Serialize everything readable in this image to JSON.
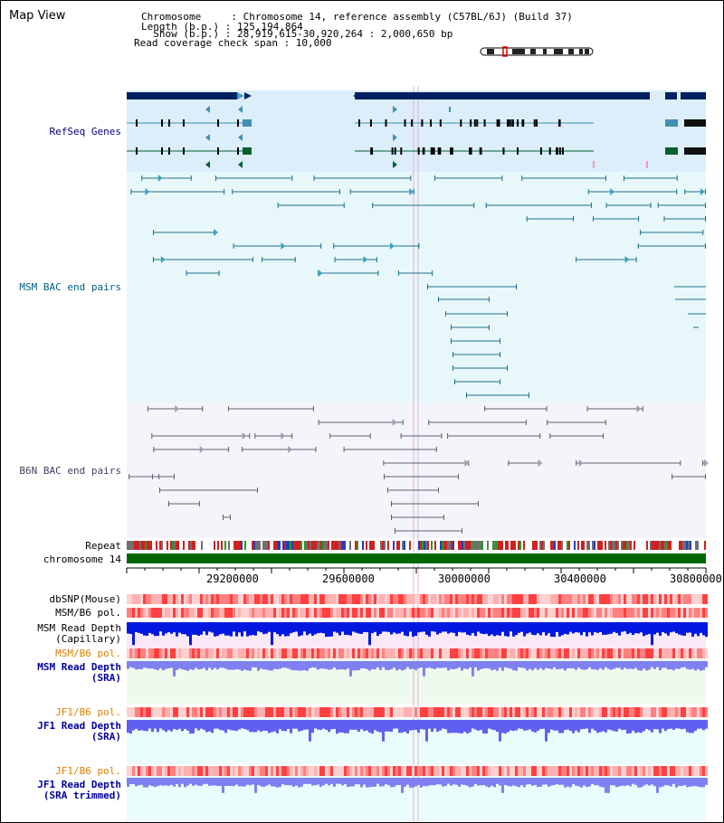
{
  "header": {
    "title": "Map View",
    "info_lines": [
      "Chromosome     : Chromosome 14, reference assembly (C57BL/6J) (Build 37)",
      "Length (b.p.) : 125,194,864",
      "  Show (b.p.) : 28,919,615-30,920,264 : 2,000,650 bp",
      "Read coverage check span : 10,000"
    ]
  },
  "tracks": {
    "refseq": "RefSeq Genes",
    "msm_bac": "MSM BAC end pairs",
    "b6n_bac": "B6N BAC end pairs",
    "repeat": "Repeat",
    "chromosome": "chromosome 14",
    "dbsnp": "dbSNP(Mouse)",
    "msm_pol1": "MSM/B6 pol.",
    "msm_depth_cap_1": "MSM Read Depth",
    "msm_depth_cap_2": "(Capillary)",
    "msm_pol2": "MSM/B6 pol.",
    "msm_depth_sra_1": "MSM Read Depth",
    "msm_depth_sra_2": "(SRA)",
    "jf1_pol1": "JF1/B6 pol.",
    "jf1_depth_sra_1": "JF1 Read Depth",
    "jf1_depth_sra_2": "(SRA)",
    "jf1_pol2": "JF1/B6 pol.",
    "jf1_depth_trim_1": "JF1 Read Depth",
    "jf1_depth_trim_2": "(SRA trimmed)"
  },
  "axis": {
    "ticks": [
      "29200000",
      "29600000",
      "30000000",
      "30400000",
      "30800000"
    ]
  },
  "colors": {
    "refseq_label": "#000080",
    "msm_label": "#006080",
    "b6n_label": "#404060",
    "pol_orange": "#e08000",
    "depth_blue": "#0000a0",
    "chrom_green": "#006600"
  }
}
